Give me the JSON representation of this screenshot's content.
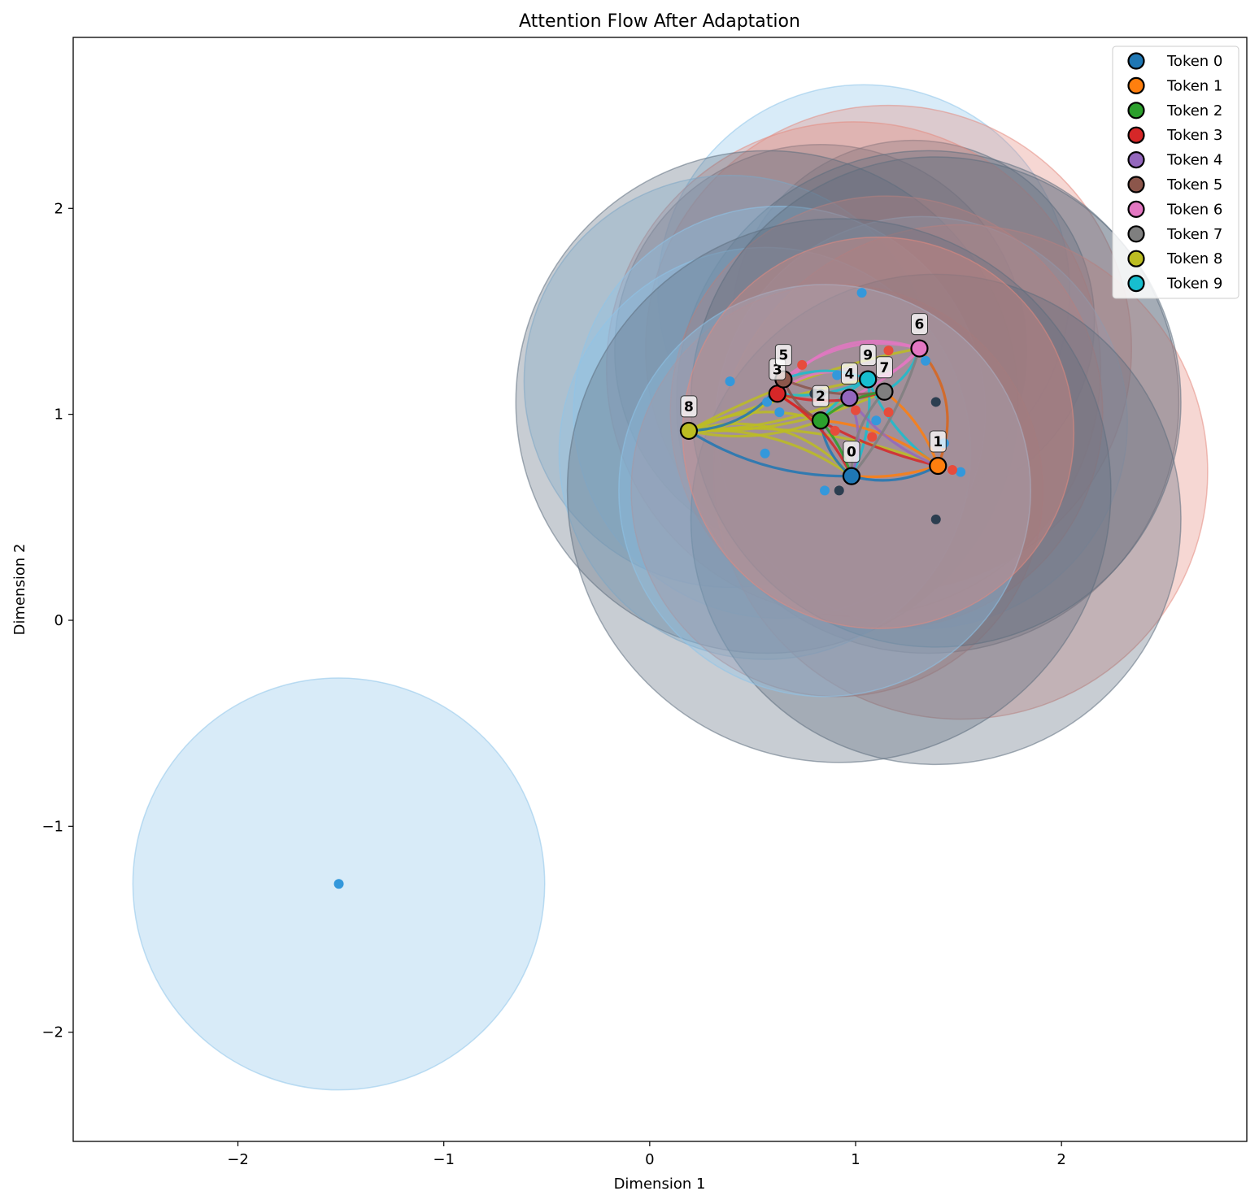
{
  "chart_data": {
    "type": "scatter",
    "title": "Attention Flow After Adaptation",
    "xlabel": "Dimension 1",
    "ylabel": "Dimension 2",
    "xlim": [
      -2.8,
      2.9
    ],
    "ylim": [
      -2.53,
      2.83
    ],
    "xticks": [
      -2,
      -1,
      0,
      1,
      2
    ],
    "yticks": [
      -2,
      -1,
      0,
      1,
      2
    ],
    "xtick_labels": [
      "−2",
      "−1",
      "0",
      "1",
      "2"
    ],
    "ytick_labels": [
      "−2",
      "−1",
      "0",
      "1",
      "2"
    ],
    "grid": false,
    "legend_position": "top-right",
    "tokens": [
      {
        "name": "Token 0",
        "label": "0",
        "x": 0.98,
        "y": 0.7,
        "color": "#1f77b4"
      },
      {
        "name": "Token 1",
        "label": "1",
        "x": 1.4,
        "y": 0.75,
        "color": "#ff7f0e"
      },
      {
        "name": "Token 2",
        "label": "2",
        "x": 0.83,
        "y": 0.97,
        "color": "#2ca02c"
      },
      {
        "name": "Token 3",
        "label": "3",
        "x": 0.62,
        "y": 1.1,
        "color": "#d62728"
      },
      {
        "name": "Token 4",
        "label": "4",
        "x": 0.97,
        "y": 1.08,
        "color": "#9467bd"
      },
      {
        "name": "Token 5",
        "label": "5",
        "x": 0.65,
        "y": 1.17,
        "color": "#8c564b"
      },
      {
        "name": "Token 6",
        "label": "6",
        "x": 1.31,
        "y": 1.32,
        "color": "#e377c2"
      },
      {
        "name": "Token 7",
        "label": "7",
        "x": 1.14,
        "y": 1.11,
        "color": "#7f7f7f"
      },
      {
        "name": "Token 8",
        "label": "8",
        "x": 0.19,
        "y": 0.92,
        "color": "#bcbd22"
      },
      {
        "name": "Token 9",
        "label": "9",
        "x": 1.06,
        "y": 1.17,
        "color": "#17becf"
      }
    ],
    "regions": [
      {
        "x": -1.51,
        "y": -1.28,
        "r": 1.0,
        "color": "#8ec4ea"
      },
      {
        "x": 1.04,
        "y": 1.6,
        "r": 1.0,
        "color": "#8ec4ea"
      },
      {
        "x": 1.16,
        "y": 1.32,
        "r": 1.18,
        "color": "#e48b7f"
      },
      {
        "x": 0.83,
        "y": 1.31,
        "r": 1.0,
        "color": "#5d6d7e"
      },
      {
        "x": 1.28,
        "y": 1.45,
        "r": 0.88,
        "color": "#5d6d7e"
      },
      {
        "x": 0.99,
        "y": 1.22,
        "r": 1.2,
        "color": "#e48b7f"
      },
      {
        "x": 0.39,
        "y": 1.16,
        "r": 1.0,
        "color": "#8ec4ea"
      },
      {
        "x": 0.57,
        "y": 1.06,
        "r": 1.22,
        "color": "#5d6d7e"
      },
      {
        "x": 1.35,
        "y": 1.06,
        "r": 1.22,
        "color": "#5d6d7e"
      },
      {
        "x": 0.63,
        "y": 1.01,
        "r": 1.0,
        "color": "#8ec4ea"
      },
      {
        "x": 1.32,
        "y": 0.96,
        "r": 1.0,
        "color": "#8ec4ea"
      },
      {
        "x": 1.51,
        "y": 0.72,
        "r": 1.2,
        "color": "#e48b7f"
      },
      {
        "x": 0.56,
        "y": 0.81,
        "r": 1.0,
        "color": "#8ec4ea"
      },
      {
        "x": 1.15,
        "y": 1.01,
        "r": 1.05,
        "color": "#e48b7f"
      },
      {
        "x": 0.91,
        "y": 0.63,
        "r": 1.0,
        "color": "#e48b7f"
      },
      {
        "x": 0.92,
        "y": 0.63,
        "r": 1.32,
        "color": "#5d6d7e"
      },
      {
        "x": 1.39,
        "y": 0.49,
        "r": 1.19,
        "color": "#5d6d7e"
      },
      {
        "x": 1.39,
        "y": 1.06,
        "r": 1.19,
        "color": "#5d6d7e"
      },
      {
        "x": 0.85,
        "y": 0.63,
        "r": 1.0,
        "color": "#8ec4ea"
      },
      {
        "x": 1.11,
        "y": 0.91,
        "r": 0.95,
        "color": "#e48b7f"
      }
    ],
    "points": [
      {
        "x": -1.51,
        "y": -1.28,
        "color": "#3498db"
      },
      {
        "x": 1.03,
        "y": 1.59,
        "color": "#3498db"
      },
      {
        "x": 1.16,
        "y": 1.31,
        "color": "#e74c3c"
      },
      {
        "x": 0.83,
        "y": 1.1,
        "color": "#2c3e50"
      },
      {
        "x": 1.34,
        "y": 1.26,
        "color": "#3498db"
      },
      {
        "x": 0.74,
        "y": 1.24,
        "color": "#e74c3c"
      },
      {
        "x": 0.39,
        "y": 1.16,
        "color": "#3498db"
      },
      {
        "x": 0.57,
        "y": 1.06,
        "color": "#3498db"
      },
      {
        "x": 1.39,
        "y": 1.06,
        "color": "#2c3e50"
      },
      {
        "x": 0.63,
        "y": 1.01,
        "color": "#3498db"
      },
      {
        "x": 1.16,
        "y": 1.01,
        "color": "#e74c3c"
      },
      {
        "x": 1.43,
        "y": 0.86,
        "color": "#3498db"
      },
      {
        "x": 0.56,
        "y": 0.81,
        "color": "#3498db"
      },
      {
        "x": 1.51,
        "y": 0.72,
        "color": "#3498db"
      },
      {
        "x": 1.47,
        "y": 0.73,
        "color": "#e74c3c"
      },
      {
        "x": 0.85,
        "y": 0.63,
        "color": "#3498db"
      },
      {
        "x": 0.92,
        "y": 0.63,
        "color": "#2c3e50"
      },
      {
        "x": 1.39,
        "y": 0.49,
        "color": "#2c3e50"
      },
      {
        "x": 0.9,
        "y": 0.92,
        "color": "#e74c3c"
      },
      {
        "x": 1.08,
        "y": 0.89,
        "color": "#e74c3c"
      },
      {
        "x": 1.0,
        "y": 1.02,
        "color": "#e74c3c"
      },
      {
        "x": 0.91,
        "y": 1.19,
        "color": "#3498db"
      },
      {
        "x": 1.1,
        "y": 0.97,
        "color": "#3498db"
      },
      {
        "x": 0.8,
        "y": 1.1,
        "color": "#2c3e50"
      }
    ],
    "edges": [
      {
        "from": 8,
        "to": 0,
        "color": "#bcbd22",
        "bend": -0.18
      },
      {
        "from": 8,
        "to": 0,
        "color": "#bcbd22",
        "bend": -0.3
      },
      {
        "from": 8,
        "to": 1,
        "color": "#bcbd22",
        "bend": -0.12
      },
      {
        "from": 8,
        "to": 2,
        "color": "#bcbd22",
        "bend": 0.15
      },
      {
        "from": 8,
        "to": 2,
        "color": "#bcbd22",
        "bend": -0.2
      },
      {
        "from": 8,
        "to": 4,
        "color": "#bcbd22",
        "bend": 0.1
      },
      {
        "from": 8,
        "to": 7,
        "color": "#bcbd22",
        "bend": 0.12
      },
      {
        "from": 8,
        "to": 3,
        "color": "#bcbd22",
        "bend": 0.2
      },
      {
        "from": 8,
        "to": 9,
        "color": "#bcbd22",
        "bend": -0.05
      },
      {
        "from": 8,
        "to": 6,
        "color": "#bcbd22",
        "bend": -0.08
      },
      {
        "from": 8,
        "to": 5,
        "color": "#1f77b4",
        "bend": 0.25
      },
      {
        "from": 8,
        "to": 0,
        "color": "#1f77b4",
        "bend": 0.15
      },
      {
        "from": 3,
        "to": 9,
        "color": "#e377c2",
        "bend": -0.3
      },
      {
        "from": 5,
        "to": 6,
        "color": "#e377c2",
        "bend": -0.25
      },
      {
        "from": 3,
        "to": 6,
        "color": "#e377c2",
        "bend": -0.35
      },
      {
        "from": 4,
        "to": 6,
        "color": "#e377c2",
        "bend": 0.1
      },
      {
        "from": 9,
        "to": 6,
        "color": "#e377c2",
        "bend": 0.2
      },
      {
        "from": 5,
        "to": 9,
        "color": "#17becf",
        "bend": -0.2
      },
      {
        "from": 3,
        "to": 9,
        "color": "#17becf",
        "bend": 0.15
      },
      {
        "from": 2,
        "to": 9,
        "color": "#17becf",
        "bend": -0.1
      },
      {
        "from": 0,
        "to": 9,
        "color": "#17becf",
        "bend": 0.15
      },
      {
        "from": 1,
        "to": 9,
        "color": "#17becf",
        "bend": -0.15
      },
      {
        "from": 7,
        "to": 6,
        "color": "#17becf",
        "bend": 0.2
      },
      {
        "from": 6,
        "to": 1,
        "color": "#d9651a",
        "bend": -0.3
      },
      {
        "from": 0,
        "to": 1,
        "color": "#ff7f0e",
        "bend": 0.1
      },
      {
        "from": 2,
        "to": 1,
        "color": "#ff7f0e",
        "bend": -0.15
      },
      {
        "from": 7,
        "to": 1,
        "color": "#ff7f0e",
        "bend": -0.15
      },
      {
        "from": 1,
        "to": 0,
        "color": "#1f77b4",
        "bend": -0.2
      },
      {
        "from": 2,
        "to": 0,
        "color": "#1f77b4",
        "bend": 0.2
      },
      {
        "from": 3,
        "to": 1,
        "color": "#d62728",
        "bend": 0.1
      },
      {
        "from": 3,
        "to": 7,
        "color": "#d62728",
        "bend": 0.15
      },
      {
        "from": 3,
        "to": 0,
        "color": "#d62728",
        "bend": -0.15
      },
      {
        "from": 5,
        "to": 7,
        "color": "#8c564b",
        "bend": 0.15
      },
      {
        "from": 5,
        "to": 2,
        "color": "#8c564b",
        "bend": 0.2
      },
      {
        "from": 4,
        "to": 1,
        "color": "#9467bd",
        "bend": 0.15
      },
      {
        "from": 4,
        "to": 0,
        "color": "#9467bd",
        "bend": -0.2
      },
      {
        "from": 2,
        "to": 7,
        "color": "#2ca02c",
        "bend": -0.15
      },
      {
        "from": 2,
        "to": 0,
        "color": "#2ca02c",
        "bend": -0.1
      },
      {
        "from": 7,
        "to": 0,
        "color": "#7f7f7f",
        "bend": 0.2
      },
      {
        "from": 6,
        "to": 0,
        "color": "#7f7f7f",
        "bend": -0.1
      }
    ]
  }
}
